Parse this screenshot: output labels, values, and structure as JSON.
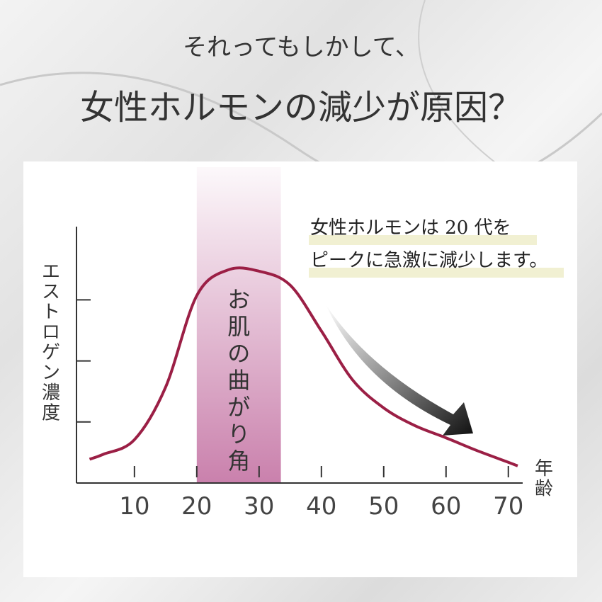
{
  "chart_data": {
    "type": "line",
    "heading": "それってもしかして、",
    "title": "女性ホルモンの減少が原因？",
    "ylabel": "エストロゲン濃度",
    "xlabel": "年齢",
    "annotation_lines": [
      "女性ホルモンは 20 代を",
      "ピークに急激に減少します。"
    ],
    "highlight": {
      "label": "お肌の曲がり角",
      "range": [
        20,
        33.5
      ],
      "color": "#c77aa8"
    },
    "xlim": [
      0.7,
      72.3
    ],
    "ylim": [
      0,
      4.2
    ],
    "xticks": [
      10,
      20,
      30,
      40,
      50,
      60,
      70
    ],
    "yticks": [
      1,
      2,
      3
    ],
    "series": [
      {
        "color": "#9b1f45",
        "x": [
          2.8,
          5,
          10,
          15,
          20,
          25,
          30,
          35,
          40,
          45,
          50,
          55,
          60,
          65,
          70,
          71.5
        ],
        "values": [
          0.39,
          0.47,
          0.71,
          1.57,
          3.07,
          3.49,
          3.47,
          3.24,
          2.49,
          1.69,
          1.23,
          0.94,
          0.74,
          0.53,
          0.34,
          0.28
        ]
      }
    ]
  }
}
